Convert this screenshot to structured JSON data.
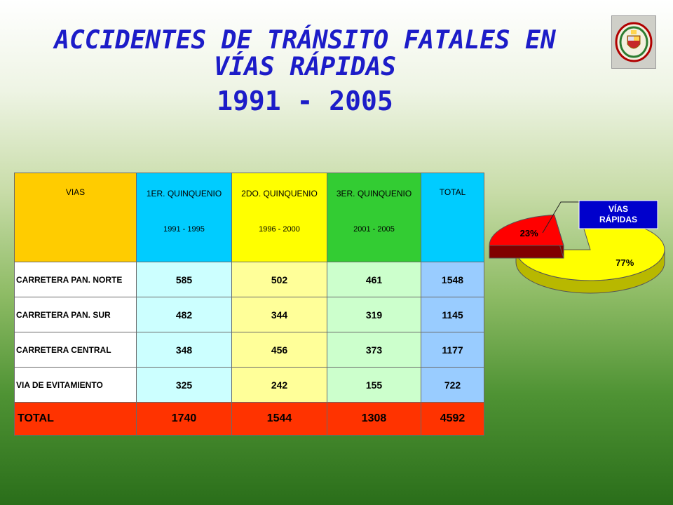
{
  "header": {
    "title_line1": "ACCIDENTES DE TRÁNSITO FATALES EN",
    "title_line2": "VÍAS RÁPIDAS",
    "years": "1991 - 2005"
  },
  "table": {
    "col_vias": "VIAS",
    "columns": [
      {
        "label": "1ER. QUINQUENIO",
        "period": "1991 - 1995"
      },
      {
        "label": "2DO. QUINQUENIO",
        "period": "1996 - 2000"
      },
      {
        "label": "3ER. QUINQUENIO",
        "period": "2001 - 2005"
      }
    ],
    "col_total": "TOTAL",
    "rows": [
      {
        "name": "CARRETERA PAN. NORTE",
        "values": [
          "585",
          "502",
          "461"
        ],
        "total": "1548"
      },
      {
        "name": "CARRETERA PAN. SUR",
        "values": [
          "482",
          "344",
          "319"
        ],
        "total": "1145"
      },
      {
        "name": "CARRETERA CENTRAL",
        "values": [
          "348",
          "456",
          "373"
        ],
        "total": "1177"
      },
      {
        "name": "VIA DE EVITAMIENTO",
        "values": [
          "325",
          "242",
          "155"
        ],
        "total": "722"
      }
    ],
    "total_row": {
      "name": "TOTAL",
      "values": [
        "1740",
        "1544",
        "1308"
      ],
      "total": "4592"
    }
  },
  "chart_data": {
    "type": "pie",
    "slices": [
      {
        "label": "23%",
        "value": 23,
        "color": "#ff0000"
      },
      {
        "label": "77%",
        "value": 77,
        "color": "#ffff00"
      }
    ],
    "callout": "VÍAS RÁPIDAS",
    "callout_color": "#0000cc"
  }
}
